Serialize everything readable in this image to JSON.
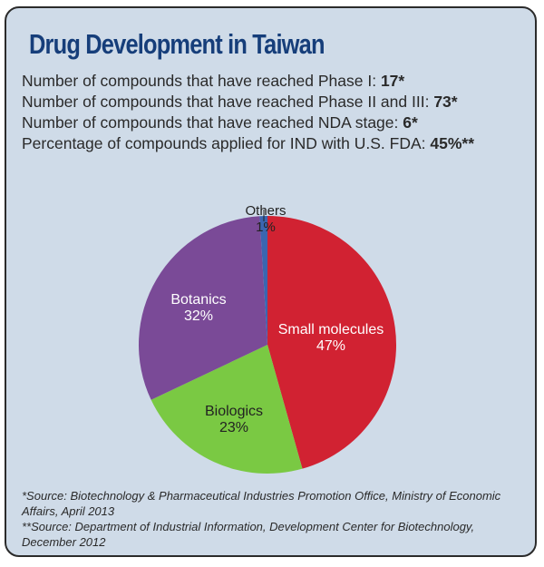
{
  "title": "Drug Development in Taiwan",
  "facts": [
    {
      "label": "Number of compounds that have reached Phase I: ",
      "value": "17*"
    },
    {
      "label": "Number of compounds that have reached Phase II and III: ",
      "value": "73*"
    },
    {
      "label": "Number of compounds that have reached NDA stage: ",
      "value": "6*"
    },
    {
      "label": "Percentage of compounds applied for IND with U.S. FDA: ",
      "value": "45%**"
    }
  ],
  "chart_data": {
    "type": "pie",
    "title": "",
    "slices": [
      {
        "label": "Small molecules",
        "value": 47,
        "display": "47%",
        "color": "#d12232",
        "text_color": "#ffffff"
      },
      {
        "label": "Biologics",
        "value": 23,
        "display": "23%",
        "color": "#7ac943",
        "text_color": "#222222"
      },
      {
        "label": "Botanics",
        "value": 32,
        "display": "32%",
        "color": "#7a4a97",
        "text_color": "#ffffff"
      },
      {
        "label": "Others",
        "value": 1,
        "display": "1%",
        "color": "#3a66b0",
        "text_color": "#222222"
      }
    ],
    "start": "top, clockwise",
    "legend": "none (direct labels)"
  },
  "sources": [
    "*Source: Biotechnology & Pharmaceutical Industries Promotion Office, Ministry of Economic Affairs, April 2013",
    "**Source: Department of Industrial Information, Development Center for Biotechnology, December 2012"
  ]
}
